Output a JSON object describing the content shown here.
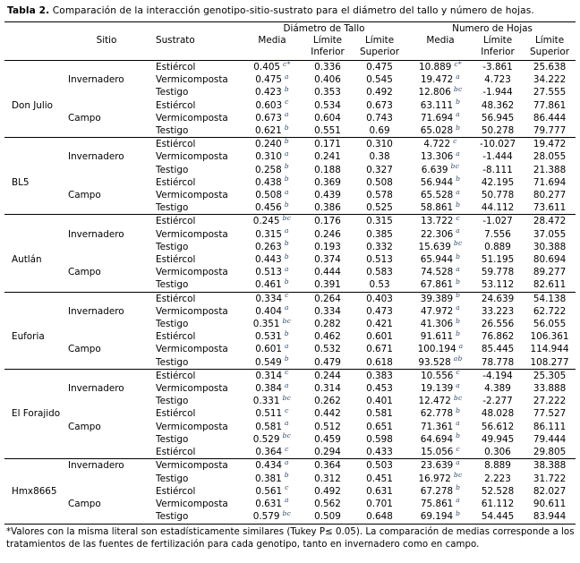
{
  "title": {
    "label": "Tabla 2.",
    "text": "Comparación de la interacción genotipo-sitio-sustrato para el diámetro del tallo y número de hojas."
  },
  "table": {
    "group_headers": {
      "tallo": "Diámetro de Tallo",
      "hojas": "Numero de Hojas"
    },
    "headers": {
      "sitio": "Sitio",
      "sustrato": "Sustrato",
      "media": "Media",
      "limite": "Límite",
      "inferior": "Inferior",
      "superior": "Superior"
    },
    "rows": [
      {
        "genotipo": "",
        "sitio": "",
        "sustrato": "Estiércol",
        "d_media": "0.405",
        "d_lit": "c*",
        "d_inf": "0.336",
        "d_sup": "0.475",
        "h_media": "10.889",
        "h_lit": "c*",
        "h_inf": "-3.861",
        "h_sup": "25.638",
        "rule": false
      },
      {
        "genotipo": "",
        "sitio": "Invernadero",
        "sustrato": "Vermicomposta",
        "d_media": "0.475",
        "d_lit": "a",
        "d_inf": "0.406",
        "d_sup": "0.545",
        "h_media": "19.472",
        "h_lit": "a",
        "h_inf": "4.723",
        "h_sup": "34.222",
        "rule": false
      },
      {
        "genotipo": "",
        "sitio": "",
        "sustrato": "Testigo",
        "d_media": "0.423",
        "d_lit": "b",
        "d_inf": "0.353",
        "d_sup": "0.492",
        "h_media": "12.806",
        "h_lit": "bc",
        "h_inf": "-1.944",
        "h_sup": "27.555",
        "rule": false
      },
      {
        "genotipo": "Don Julio",
        "sitio": "",
        "sustrato": "Estiércol",
        "d_media": "0.603",
        "d_lit": "c",
        "d_inf": "0.534",
        "d_sup": "0.673",
        "h_media": "63.111",
        "h_lit": "b",
        "h_inf": "48.362",
        "h_sup": "77.861",
        "rule": false
      },
      {
        "genotipo": "",
        "sitio": "Campo",
        "sustrato": "Vermicomposta",
        "d_media": "0.673",
        "d_lit": "a",
        "d_inf": "0.604",
        "d_sup": "0.743",
        "h_media": "71.694",
        "h_lit": "a",
        "h_inf": "56.945",
        "h_sup": "86.444",
        "rule": false
      },
      {
        "genotipo": "",
        "sitio": "",
        "sustrato": "Testigo",
        "d_media": "0.621",
        "d_lit": "b",
        "d_inf": "0.551",
        "d_sup": "0.69",
        "h_media": "65.028",
        "h_lit": "b",
        "h_inf": "50.278",
        "h_sup": "79.777",
        "rule": false
      },
      {
        "genotipo": "",
        "sitio": "",
        "sustrato": "Estiércol",
        "d_media": "0.240",
        "d_lit": "b",
        "d_inf": "0.171",
        "d_sup": "0.310",
        "h_media": "4.722",
        "h_lit": "c",
        "h_inf": "-10.027",
        "h_sup": "19.472",
        "rule": true
      },
      {
        "genotipo": "",
        "sitio": "Invernadero",
        "sustrato": "Vermicomposta",
        "d_media": "0.310",
        "d_lit": "a",
        "d_inf": "0.241",
        "d_sup": "0.38",
        "h_media": "13.306",
        "h_lit": "a",
        "h_inf": "-1.444",
        "h_sup": "28.055",
        "rule": false
      },
      {
        "genotipo": "",
        "sitio": "",
        "sustrato": "Testigo",
        "d_media": "0.258",
        "d_lit": "b",
        "d_inf": "0.188",
        "d_sup": "0.327",
        "h_media": "6.639",
        "h_lit": "bc",
        "h_inf": "-8.111",
        "h_sup": "21.388",
        "rule": false
      },
      {
        "genotipo": "BL5",
        "sitio": "",
        "sustrato": "Estiércol",
        "d_media": "0.438",
        "d_lit": "b",
        "d_inf": "0.369",
        "d_sup": "0.508",
        "h_media": "56.944",
        "h_lit": "b",
        "h_inf": "42.195",
        "h_sup": "71.694",
        "rule": false
      },
      {
        "genotipo": "",
        "sitio": "Campo",
        "sustrato": "Vermicomposta",
        "d_media": "0.508",
        "d_lit": "a",
        "d_inf": "0.439",
        "d_sup": "0.578",
        "h_media": "65.528",
        "h_lit": "a",
        "h_inf": "50.778",
        "h_sup": "80.277",
        "rule": false
      },
      {
        "genotipo": "",
        "sitio": "",
        "sustrato": "Testigo",
        "d_media": "0.456",
        "d_lit": "b",
        "d_inf": "0.386",
        "d_sup": "0.525",
        "h_media": "58.861",
        "h_lit": "b",
        "h_inf": "44.112",
        "h_sup": "73.611",
        "rule": false
      },
      {
        "genotipo": "",
        "sitio": "",
        "sustrato": "Estiércol",
        "d_media": "0.245",
        "d_lit": "bc",
        "d_inf": "0.176",
        "d_sup": "0.315",
        "h_media": "13.722",
        "h_lit": "c",
        "h_inf": "-1.027",
        "h_sup": "28.472",
        "rule": true
      },
      {
        "genotipo": "",
        "sitio": "Invernadero",
        "sustrato": "Vermicomposta",
        "d_media": "0.315",
        "d_lit": "a",
        "d_inf": "0.246",
        "d_sup": "0.385",
        "h_media": "22.306",
        "h_lit": "a",
        "h_inf": "7.556",
        "h_sup": "37.055",
        "rule": false
      },
      {
        "genotipo": "",
        "sitio": "",
        "sustrato": "Testigo",
        "d_media": "0.263",
        "d_lit": "b",
        "d_inf": "0.193",
        "d_sup": "0.332",
        "h_media": "15.639",
        "h_lit": "bc",
        "h_inf": "0.889",
        "h_sup": "30.388",
        "rule": false
      },
      {
        "genotipo": "Autlán",
        "sitio": "",
        "sustrato": "Estiércol",
        "d_media": "0.443",
        "d_lit": "b",
        "d_inf": "0.374",
        "d_sup": "0.513",
        "h_media": "65.944",
        "h_lit": "b",
        "h_inf": "51.195",
        "h_sup": "80.694",
        "rule": false
      },
      {
        "genotipo": "",
        "sitio": "Campo",
        "sustrato": "Vermicomposta",
        "d_media": "0.513",
        "d_lit": "a",
        "d_inf": "0.444",
        "d_sup": "0.583",
        "h_media": "74.528",
        "h_lit": "a",
        "h_inf": "59.778",
        "h_sup": "89.277",
        "rule": false
      },
      {
        "genotipo": "",
        "sitio": "",
        "sustrato": "Testigo",
        "d_media": "0.461",
        "d_lit": "b",
        "d_inf": "0.391",
        "d_sup": "0.53",
        "h_media": "67.861",
        "h_lit": "b",
        "h_inf": "53.112",
        "h_sup": "82.611",
        "rule": false
      },
      {
        "genotipo": "",
        "sitio": "",
        "sustrato": "Estiércol",
        "d_media": "0.334",
        "d_lit": "c",
        "d_inf": "0.264",
        "d_sup": "0.403",
        "h_media": "39.389",
        "h_lit": "b",
        "h_inf": "24.639",
        "h_sup": "54.138",
        "rule": true
      },
      {
        "genotipo": "",
        "sitio": "Invernadero",
        "sustrato": "Vermicomposta",
        "d_media": "0.404",
        "d_lit": "a",
        "d_inf": "0.334",
        "d_sup": "0.473",
        "h_media": "47.972",
        "h_lit": "a",
        "h_inf": "33.223",
        "h_sup": "62.722",
        "rule": false
      },
      {
        "genotipo": "",
        "sitio": "",
        "sustrato": "Testigo",
        "d_media": "0.351",
        "d_lit": "bc",
        "d_inf": "0.282",
        "d_sup": "0.421",
        "h_media": "41.306",
        "h_lit": "b",
        "h_inf": "26.556",
        "h_sup": "56.055",
        "rule": false
      },
      {
        "genotipo": "Euforia",
        "sitio": "",
        "sustrato": "Estiércol",
        "d_media": "0.531",
        "d_lit": "b",
        "d_inf": "0.462",
        "d_sup": "0.601",
        "h_media": "91.611",
        "h_lit": "b",
        "h_inf": "76.862",
        "h_sup": "106.361",
        "rule": false
      },
      {
        "genotipo": "",
        "sitio": "Campo",
        "sustrato": "Vermicomposta",
        "d_media": "0.601",
        "d_lit": "a",
        "d_inf": "0.532",
        "d_sup": "0.671",
        "h_media": "100.194",
        "h_lit": "a",
        "h_inf": "85.445",
        "h_sup": "114.944",
        "rule": false
      },
      {
        "genotipo": "",
        "sitio": "",
        "sustrato": "Testigo",
        "d_media": "0.549",
        "d_lit": "b",
        "d_inf": "0.479",
        "d_sup": "0.618",
        "h_media": "93.528",
        "h_lit": "ab",
        "h_inf": "78.778",
        "h_sup": "108.277",
        "rule": false
      },
      {
        "genotipo": "",
        "sitio": "",
        "sustrato": "Estiércol",
        "d_media": "0.314",
        "d_lit": "c",
        "d_inf": "0.244",
        "d_sup": "0.383",
        "h_media": "10.556",
        "h_lit": "c",
        "h_inf": "-4.194",
        "h_sup": "25.305",
        "rule": true
      },
      {
        "genotipo": "",
        "sitio": "Invernadero",
        "sustrato": "Vermicomposta",
        "d_media": "0.384",
        "d_lit": "a",
        "d_inf": "0.314",
        "d_sup": "0.453",
        "h_media": "19.139",
        "h_lit": "a",
        "h_inf": "4.389",
        "h_sup": "33.888",
        "rule": false
      },
      {
        "genotipo": "",
        "sitio": "",
        "sustrato": "Testigo",
        "d_media": "0.331",
        "d_lit": "bc",
        "d_inf": "0.262",
        "d_sup": "0.401",
        "h_media": "12.472",
        "h_lit": "bc",
        "h_inf": "-2.277",
        "h_sup": "27.222",
        "rule": false
      },
      {
        "genotipo": "El Forajido",
        "sitio": "",
        "sustrato": "Estiércol",
        "d_media": "0.511",
        "d_lit": "c",
        "d_inf": "0.442",
        "d_sup": "0.581",
        "h_media": "62.778",
        "h_lit": "b",
        "h_inf": "48.028",
        "h_sup": "77.527",
        "rule": false
      },
      {
        "genotipo": "",
        "sitio": "Campo",
        "sustrato": "Vermicomposta",
        "d_media": "0.581",
        "d_lit": "a",
        "d_inf": "0.512",
        "d_sup": "0.651",
        "h_media": "71.361",
        "h_lit": "a",
        "h_inf": "56.612",
        "h_sup": "86.111",
        "rule": false
      },
      {
        "genotipo": "",
        "sitio": "",
        "sustrato": "Testigo",
        "d_media": "0.529",
        "d_lit": "bc",
        "d_inf": "0.459",
        "d_sup": "0.598",
        "h_media": "64.694",
        "h_lit": "b",
        "h_inf": "49.945",
        "h_sup": "79.444",
        "rule": false
      },
      {
        "genotipo": "",
        "sitio": "",
        "sustrato": "Estiércol",
        "d_media": "0.364",
        "d_lit": "c",
        "d_inf": "0.294",
        "d_sup": "0.433",
        "h_media": "15.056",
        "h_lit": "c",
        "h_inf": "0.306",
        "h_sup": "29.805",
        "rule": false
      },
      {
        "genotipo": "",
        "sitio": "Invernadero",
        "sustrato": "Vermicomposta",
        "d_media": "0.434",
        "d_lit": "a",
        "d_inf": "0.364",
        "d_sup": "0.503",
        "h_media": "23.639",
        "h_lit": "a",
        "h_inf": "8.889",
        "h_sup": "38.388",
        "rule": true
      },
      {
        "genotipo": "",
        "sitio": "",
        "sustrato": "Testigo",
        "d_media": "0.381",
        "d_lit": "b",
        "d_inf": "0.312",
        "d_sup": "0.451",
        "h_media": "16.972",
        "h_lit": "bc",
        "h_inf": "2.223",
        "h_sup": "31.722",
        "rule": false
      },
      {
        "genotipo": "Hmx8665",
        "sitio": "",
        "sustrato": "Estiércol",
        "d_media": "0.561",
        "d_lit": "c",
        "d_inf": "0.492",
        "d_sup": "0.631",
        "h_media": "67.278",
        "h_lit": "b",
        "h_inf": "52.528",
        "h_sup": "82.027",
        "rule": false
      },
      {
        "genotipo": "",
        "sitio": "Campo",
        "sustrato": "Vermicomposta",
        "d_media": "0.631",
        "d_lit": "a",
        "d_inf": "0.562",
        "d_sup": "0.701",
        "h_media": "75.861",
        "h_lit": "a",
        "h_inf": "61.112",
        "h_sup": "90.611",
        "rule": false
      },
      {
        "genotipo": "",
        "sitio": "",
        "sustrato": "Testigo",
        "d_media": "0.579",
        "d_lit": "bc",
        "d_inf": "0.509",
        "d_sup": "0.648",
        "h_media": "69.194",
        "h_lit": "b",
        "h_inf": "54.445",
        "h_sup": "83.944",
        "rule": false
      }
    ]
  },
  "footnote": {
    "text": "*Valores con la misma literal son estadísticamente similares (Tukey P≤ 0.05). La comparación de medias corresponde a los tratamientos de las fuentes de fertilización para cada genotipo, tanto en invernadero como en campo."
  }
}
